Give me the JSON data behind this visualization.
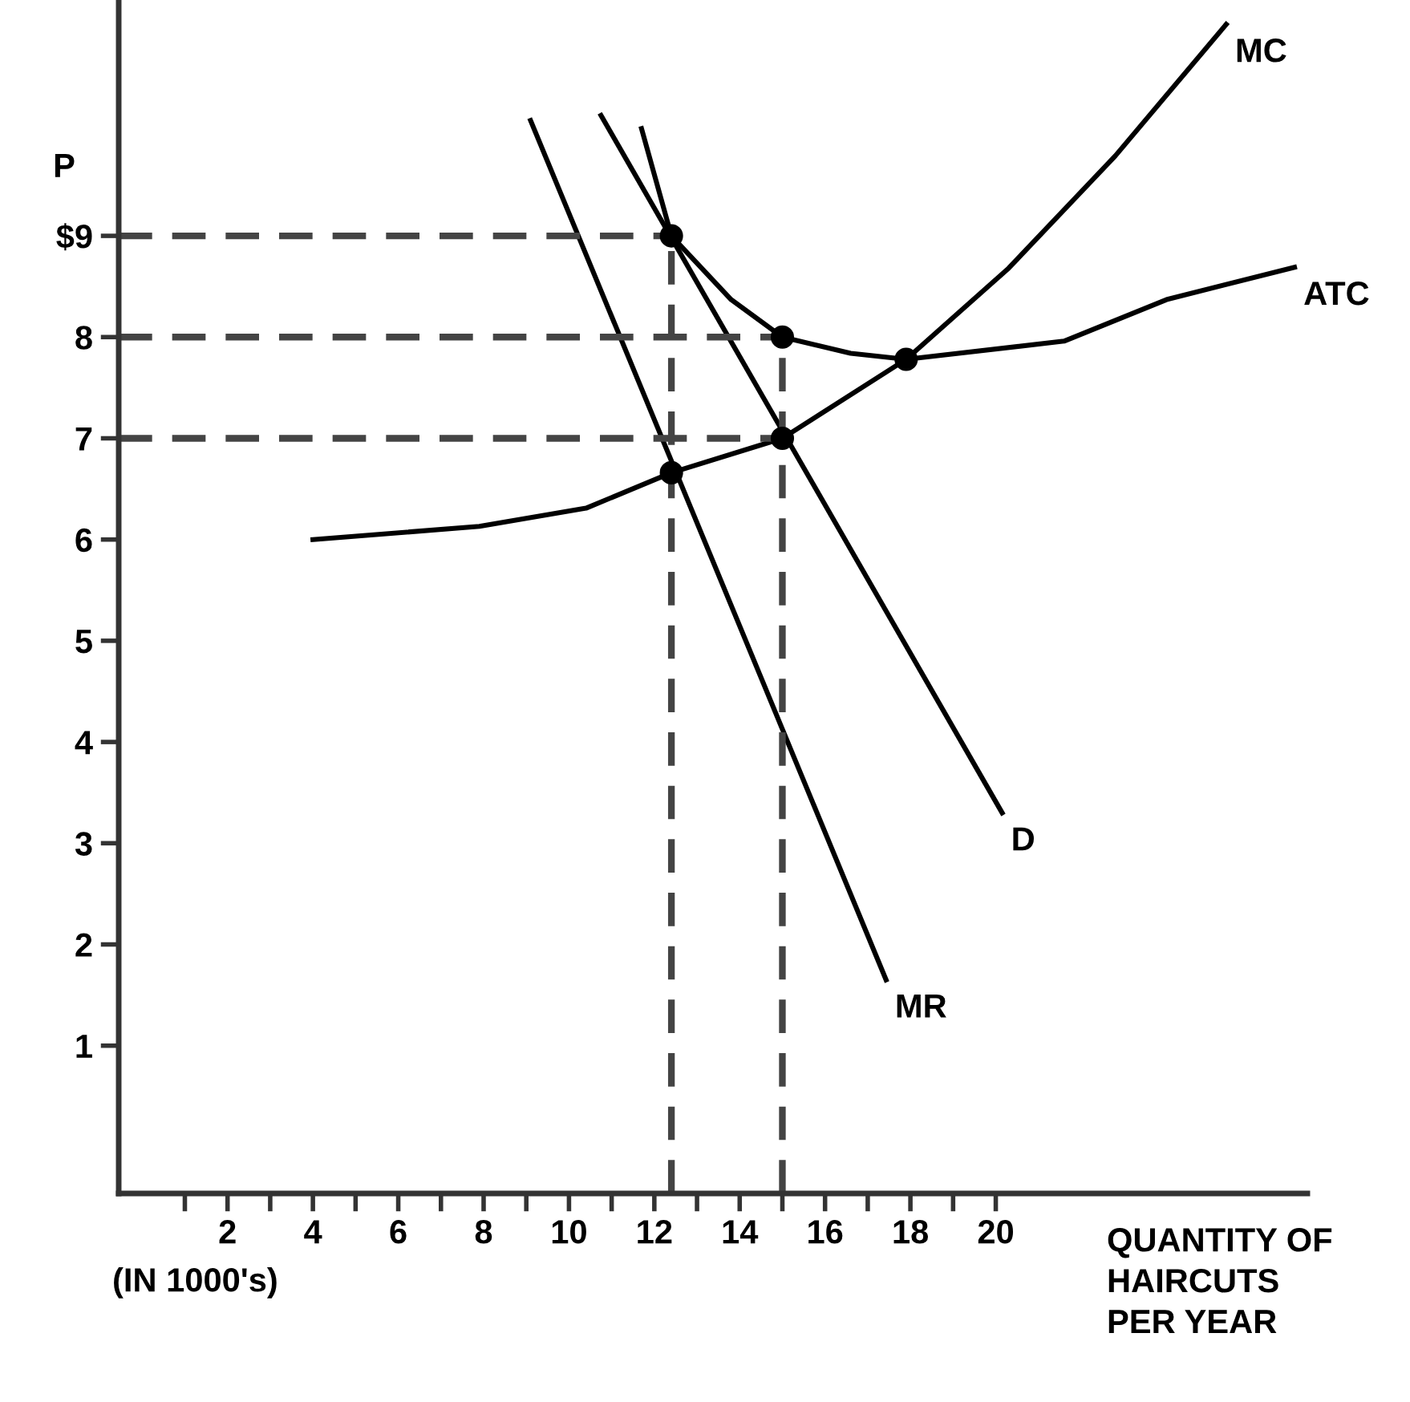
{
  "chart_data": {
    "type": "line",
    "ylabel": "P",
    "xlabel": "QUANTITY OF\nHAIRCUTS\nPER YEAR",
    "annotations": [
      "(IN 1000's)"
    ],
    "xlim": [
      -0.55,
      27.3
    ],
    "ylim": [
      -0.46,
      11.33
    ],
    "xticks": [
      {
        "value": 1,
        "label": null
      },
      2,
      {
        "value": 3,
        "label": null
      },
      4,
      {
        "value": 5,
        "label": null
      },
      6,
      {
        "value": 7,
        "label": null
      },
      8,
      {
        "value": 9,
        "label": null
      },
      10,
      {
        "value": 11,
        "label": null
      },
      12,
      {
        "value": 13,
        "label": null
      },
      14,
      {
        "value": 15,
        "label": null
      },
      16,
      {
        "value": 17,
        "label": null
      },
      18,
      {
        "value": 19,
        "label": null
      },
      20
    ],
    "yticks": [
      1,
      2,
      3,
      4,
      5,
      6,
      7,
      8,
      {
        "value": 9,
        "label": "$9"
      }
    ],
    "grid": false,
    "legend": false,
    "marker": "none",
    "line_style": "solid",
    "series": [
      {
        "name": "ATC",
        "color": "#000000",
        "x": [
          11.7,
          12.4,
          13.8,
          15.0,
          16.6,
          17.9,
          21.6,
          24.0,
          27.0
        ],
        "values": [
          10.06,
          9.0,
          8.37,
          8.0,
          7.84,
          7.78,
          7.96,
          8.37,
          8.69
        ]
      },
      {
        "name": "MC",
        "color": "#000000",
        "x": [
          4.0,
          7.9,
          10.4,
          12.4,
          15.0,
          17.9,
          20.3,
          22.8,
          25.4
        ],
        "values": [
          6.0,
          6.13,
          6.31,
          6.66,
          7.0,
          7.78,
          8.68,
          9.79,
          11.09
        ]
      },
      {
        "name": "D",
        "color": "#000000",
        "x": [
          10.75,
          20.15
        ],
        "values": [
          10.19,
          3.3
        ]
      },
      {
        "name": "MR",
        "color": "#000000",
        "x": [
          9.1,
          17.43
        ],
        "values": [
          10.14,
          1.65
        ]
      },
      {
        "color": "#444444",
        "line_style": "dashed",
        "x": [
          -0.55,
          12.4
        ],
        "values": [
          9,
          9
        ]
      },
      {
        "color": "#444444",
        "line_style": "dashed",
        "x": [
          -0.55,
          15.0
        ],
        "values": [
          8,
          8
        ]
      },
      {
        "color": "#444444",
        "line_style": "dashed",
        "x": [
          -0.55,
          15.0
        ],
        "values": [
          7,
          7
        ]
      },
      {
        "color": "#444444",
        "line_style": "dashed",
        "x": [
          12.4,
          12.4
        ],
        "values": [
          -0.46,
          9
        ]
      },
      {
        "color": "#444444",
        "line_style": "dashed",
        "x": [
          15.0,
          15.0
        ],
        "values": [
          -0.46,
          8
        ]
      },
      {
        "type": "scatter",
        "marker": "circle",
        "color": "#000000",
        "x": [
          12.4,
          15.0,
          17.9,
          12.4,
          15.0
        ],
        "values": [
          9,
          8,
          7.78,
          6.66,
          7
        ]
      }
    ]
  }
}
